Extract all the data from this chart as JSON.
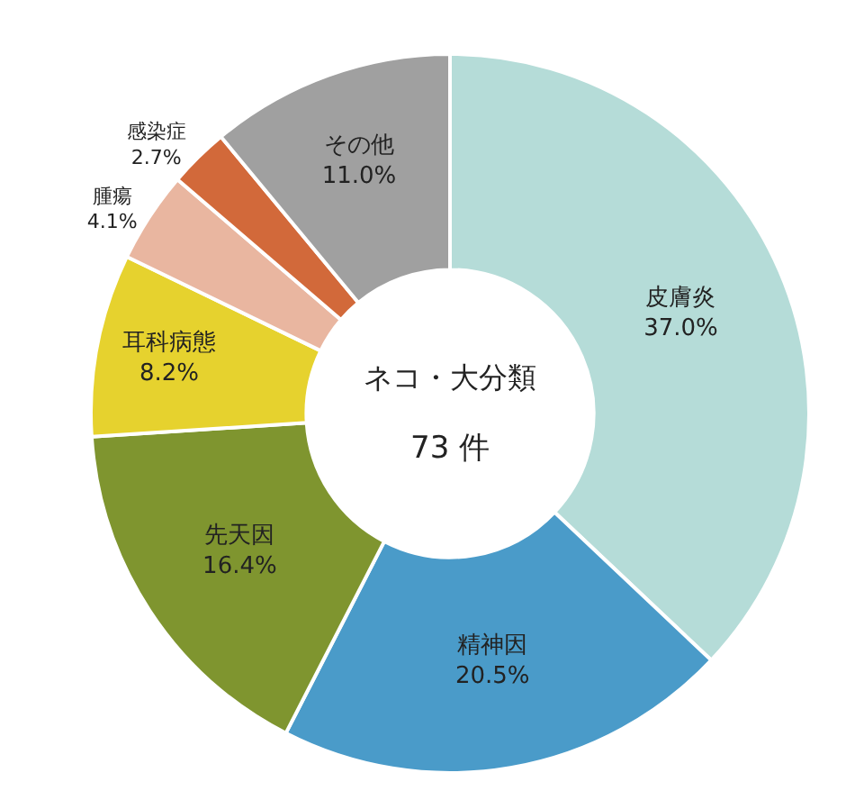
{
  "chart_data": {
    "type": "donut",
    "categories": [
      "皮膚炎",
      "精神因",
      "先天因",
      "耳科病態",
      "腫瘍",
      "感染症",
      "その他"
    ],
    "values": [
      37.0,
      20.5,
      16.4,
      8.2,
      4.1,
      2.7,
      11.0
    ],
    "value_labels": [
      "37.0%",
      "20.5%",
      "16.4%",
      "8.2%",
      "4.1%",
      "2.7%",
      "11.0%"
    ],
    "colors": [
      "#b5dcd8",
      "#4a9bc9",
      "#7f952f",
      "#e6d22e",
      "#e9b6a0",
      "#d2693a",
      "#a0a0a0"
    ],
    "annotations": [
      "ネコ・大分類",
      "73 件"
    ],
    "legend": false
  }
}
